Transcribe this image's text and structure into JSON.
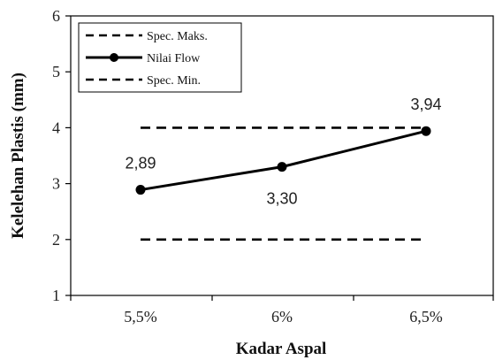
{
  "chart_data": {
    "type": "line",
    "categories": [
      "5,5%",
      "6%",
      "6,5%"
    ],
    "series": [
      {
        "name": "Spec. Maks.",
        "values": [
          4,
          4,
          4
        ],
        "style": "dashed",
        "color": "#000000"
      },
      {
        "name": "Nilai Flow",
        "values": [
          2.89,
          3.3,
          3.94
        ],
        "style": "solid-marker",
        "color": "#000000",
        "labels": [
          "2,89",
          "3,30",
          "3,94"
        ]
      },
      {
        "name": "Spec. Min.",
        "values": [
          2,
          2,
          2
        ],
        "style": "dashed",
        "color": "#000000"
      }
    ],
    "xlabel": "Kadar Aspal",
    "ylabel": "Kelelehan Plastis (mm)",
    "ylim": [
      1,
      6
    ],
    "yticks": [
      "1",
      "2",
      "3",
      "4",
      "5",
      "6"
    ],
    "grid": false,
    "legend_position": "top-left"
  }
}
